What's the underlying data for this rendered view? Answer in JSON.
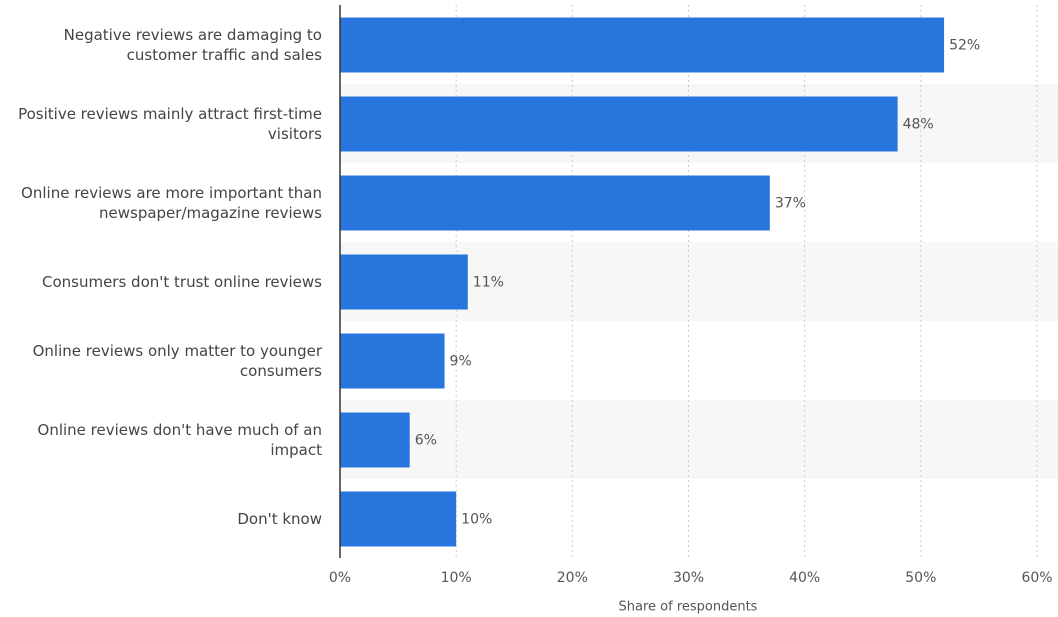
{
  "chart_data": {
    "type": "bar",
    "orientation": "horizontal",
    "x_label": "Share of respondents",
    "categories": [
      "Negative reviews are damaging to customer traffic and sales",
      "Positive reviews mainly attract first-time visitors",
      "Online reviews are more important than newspaper/magazine reviews",
      "Consumers don't trust online reviews",
      "Online reviews only matter to younger consumers",
      "Online reviews don't have much of an impact",
      "Don't know"
    ],
    "values": [
      52,
      48,
      37,
      11,
      9,
      6,
      10
    ],
    "value_labels": [
      "52%",
      "48%",
      "37%",
      "11%",
      "9%",
      "6%",
      "10%"
    ],
    "color": "#2876dd",
    "xlim": [
      0,
      60
    ],
    "xticks": [
      {
        "value": 0,
        "label": "0%"
      },
      {
        "value": 10,
        "label": "10%"
      },
      {
        "value": 20,
        "label": "20%"
      },
      {
        "value": 30,
        "label": "30%"
      },
      {
        "value": 40,
        "label": "40%"
      },
      {
        "value": 50,
        "label": "50%"
      },
      {
        "value": 60,
        "label": "60%"
      }
    ],
    "grid": true
  }
}
